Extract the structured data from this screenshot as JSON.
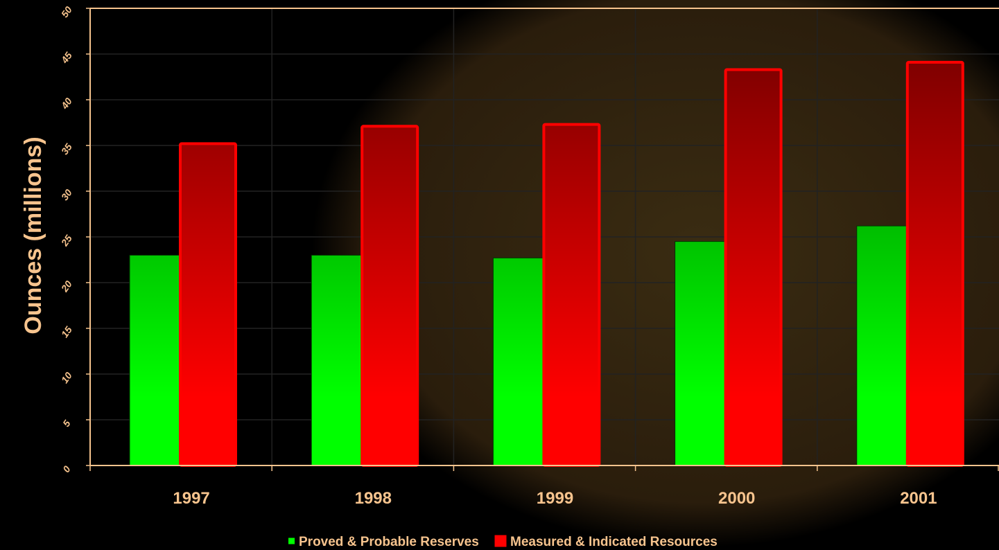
{
  "chart_data": {
    "type": "bar",
    "y_label": "Ounces (millions)",
    "categories": [
      "1997",
      "1998",
      "1999",
      "2000",
      "2001"
    ],
    "series": [
      {
        "name": "Proved & Probable Reserves",
        "color": "#00ff00",
        "values": [
          23,
          23,
          22.7,
          24.5,
          26.2
        ]
      },
      {
        "name": "Measured & Indicated Resources",
        "color": "#ff0000",
        "values": [
          35.2,
          37.1,
          37.3,
          43.3,
          44.1
        ]
      }
    ],
    "ylim": [
      0,
      50
    ],
    "yticks": [
      0,
      5,
      10,
      15,
      20,
      25,
      30,
      35,
      40,
      45,
      50
    ],
    "grid": true
  }
}
